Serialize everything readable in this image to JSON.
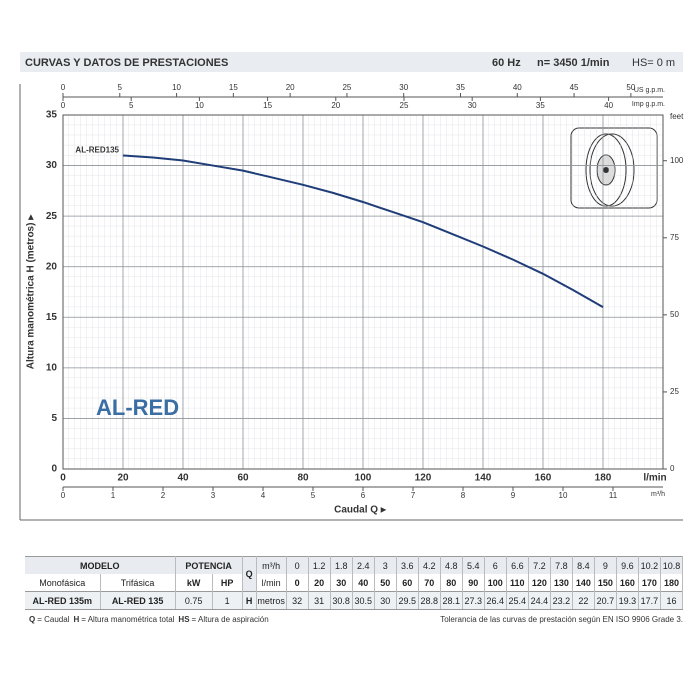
{
  "header": {
    "title": "CURVAS Y DATOS DE PRESTACIONES",
    "freq": "60 Hz",
    "speed": "n= 3450  1/min",
    "hs": "HS= 0 m"
  },
  "chart_data": {
    "type": "line",
    "x_label": "Caudal  Q  ▸",
    "y_label": "Altura manométrica  H (metros)  ▸",
    "x_unit": "l/min",
    "annotation": "AL-RED",
    "xlim": [
      0,
      200
    ],
    "xticks": [
      0,
      20,
      40,
      60,
      80,
      100,
      120,
      140,
      160,
      180
    ],
    "ylim": [
      0,
      35
    ],
    "yticks": [
      0,
      5,
      10,
      15,
      20,
      25,
      30,
      35
    ],
    "grid": true,
    "y2_label": "feet",
    "y2lim": [
      0,
      114.83
    ],
    "y2ticks": [
      0,
      25,
      50,
      75,
      100
    ],
    "secondary_x_axes": [
      {
        "side": "top",
        "label": "US g.p.m.",
        "xlim": [
          0,
          52.83
        ],
        "xticks": [
          0,
          5,
          10,
          15,
          20,
          25,
          30,
          35,
          40,
          45,
          50
        ]
      },
      {
        "side": "top-inner",
        "label": "Imp g.p.m.",
        "xlim": [
          0,
          43.99
        ],
        "xticks": [
          0,
          5,
          10,
          15,
          20,
          25,
          30,
          35,
          40
        ]
      },
      {
        "side": "bottom",
        "label": "m³/h",
        "xlim": [
          0,
          12
        ],
        "xticks": [
          0,
          1,
          2,
          3,
          4,
          5,
          6,
          7,
          8,
          9,
          10,
          11
        ]
      }
    ],
    "series": [
      {
        "name": "AL-RED135",
        "color": "#1f3d78",
        "x": [
          20,
          30,
          40,
          50,
          60,
          70,
          80,
          90,
          100,
          110,
          120,
          130,
          140,
          150,
          160,
          170,
          180
        ],
        "values": [
          31,
          30.8,
          30.5,
          30,
          29.5,
          28.8,
          28.1,
          27.3,
          26.4,
          25.4,
          24.4,
          23.2,
          22,
          20.7,
          19.3,
          17.7,
          16
        ]
      }
    ]
  },
  "table": {
    "model": "MODELO",
    "power": "POTENCIA",
    "mono": "Monofásica",
    "tri": "Trifásica",
    "kw": "kW",
    "hp": "HP",
    "q": "Q",
    "q_m3h_unit": "m³/h",
    "q_lmin_unit": "l/min",
    "h": "H",
    "h_unit": "metros",
    "q_m3h": [
      0,
      1.2,
      1.8,
      2.4,
      3,
      3.6,
      4.2,
      4.8,
      5.4,
      6,
      6.6,
      7.2,
      7.8,
      8.4,
      9,
      9.6,
      10.2,
      10.8
    ],
    "q_lmin": [
      0,
      20,
      30,
      40,
      50,
      60,
      70,
      80,
      90,
      100,
      110,
      120,
      130,
      140,
      150,
      160,
      170,
      180
    ],
    "rows": [
      {
        "mono": "AL-RED 135m",
        "tri": "AL-RED 135",
        "kw": 0.75,
        "hp": 1,
        "h": [
          32,
          31,
          30.8,
          30.5,
          30,
          29.5,
          28.8,
          28.1,
          27.3,
          26.4,
          25.4,
          24.4,
          23.2,
          22,
          20.7,
          19.3,
          17.7,
          16
        ]
      }
    ]
  },
  "footer": {
    "legend": [
      {
        "key": "Q",
        "text": "= Caudal"
      },
      {
        "key": "H",
        "text": "= Altura manométrica total"
      },
      {
        "key": "HS",
        "text": "= Altura de aspiración"
      }
    ],
    "note": "Tolerancia de las curvas de prestación según EN ISO 9906 Grade 3."
  }
}
